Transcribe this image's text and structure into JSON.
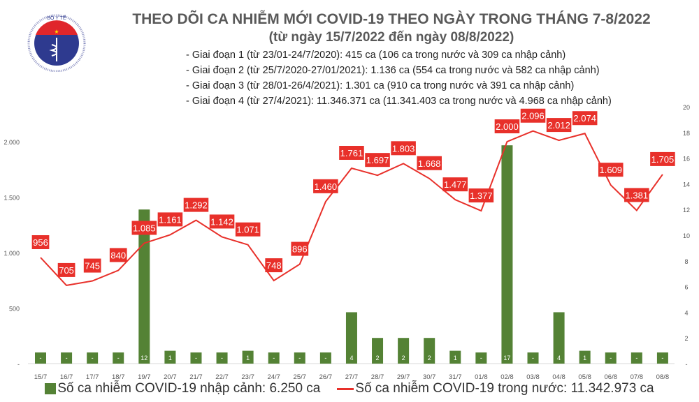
{
  "logo": {
    "text_top": "BỘ Y TẾ",
    "text_bottom": "MINISTRY OF HEALTH"
  },
  "header": {
    "title": "THEO DÕI CA NHIỄM MỚI COVID-19 THEO NGÀY TRONG THÁNG 7-8/2022",
    "subtitle": "(từ ngày 15/7/2022 đến ngày 08/8/2022)",
    "notes": [
      "- Giai đoạn 1 (từ 23/01-24/7/2020): 415 ca (106 ca trong nước và 309 ca nhập cảnh)",
      "- Giai đoạn 2 (từ 25/7/2020-27/01/2021): 1.136 ca (554 ca trong nước và 582 ca nhập cảnh)",
      "- Giai đoạn 3 (từ 28/01-26/4/2021): 1.301 ca (910 ca trong nước và 391 ca nhập cảnh)",
      "- Giai đoạn 4 (từ 27/4/2021): 11.346.371 ca (11.341.403 ca trong nước và 4.968 ca nhập cảnh)"
    ]
  },
  "chart_data": {
    "type": "bar+line",
    "categories": [
      "15/7",
      "16/7",
      "17/7",
      "18/7",
      "19/7",
      "20/7",
      "21/7",
      "22/7",
      "23/7",
      "24/7",
      "25/7",
      "26/7",
      "27/7",
      "28/7",
      "29/7",
      "30/7",
      "31/7",
      "01/8",
      "02/8",
      "03/8",
      "04/8",
      "05/8",
      "06/8",
      "07/8",
      "08/8"
    ],
    "series": [
      {
        "name": "Số ca nhiễm COVID-19 nhập cảnh: 6.250 ca",
        "type": "bar",
        "axis": "right",
        "color": "#548235",
        "values": [
          0,
          0,
          0,
          0,
          12,
          1,
          0,
          0,
          1,
          0,
          0,
          0,
          4,
          2,
          2,
          2,
          1,
          0,
          17,
          0,
          4,
          1,
          0,
          0,
          0
        ]
      },
      {
        "name": "Số ca nhiễm COVID-19 trong nước: 11.342.973 ca",
        "type": "line",
        "axis": "left",
        "color": "#e8302a",
        "values": [
          956,
          705,
          745,
          840,
          1085,
          1161,
          1292,
          1142,
          1071,
          748,
          896,
          1460,
          1761,
          1697,
          1803,
          1668,
          1477,
          1377,
          2000,
          2096,
          2012,
          2074,
          1609,
          1381,
          1705
        ]
      }
    ],
    "left_axis": {
      "range": [
        0,
        2000
      ],
      "ticks": [
        "-",
        "500",
        "1.000",
        "1.500",
        "2.000"
      ]
    },
    "right_axis": {
      "range": [
        0,
        20
      ],
      "ticks": [
        "-",
        "2",
        "4",
        "6",
        "8",
        "10",
        "12",
        "14",
        "16",
        "18",
        "20"
      ]
    },
    "legend_placement": "bottom",
    "grid": false
  }
}
